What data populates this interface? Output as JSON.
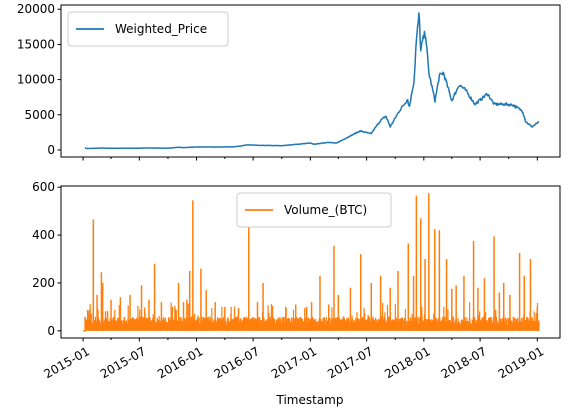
{
  "chart_data": [
    {
      "type": "line",
      "title": "",
      "xlabel": "",
      "ylabel": "",
      "xlim": [
        "2014-10-22",
        "2019-03-15"
      ],
      "ylim": [
        -1000,
        20600
      ],
      "yticks": [
        0,
        5000,
        10000,
        15000,
        20000
      ],
      "x_tick_labels_shown": false,
      "grid": false,
      "legend": "top-left",
      "series": [
        {
          "name": "Weighted_Price",
          "color": "#1f77b4",
          "x": [
            "2015-01-07",
            "2015-01-14",
            "2015-02-01",
            "2015-03-01",
            "2015-04-01",
            "2015-06-01",
            "2015-08-01",
            "2015-10-01",
            "2015-11-05",
            "2015-11-20",
            "2016-01-01",
            "2016-03-01",
            "2016-05-01",
            "2016-06-15",
            "2016-07-15",
            "2016-10-01",
            "2017-01-01",
            "2017-01-12",
            "2017-03-01",
            "2017-03-25",
            "2017-05-01",
            "2017-06-10",
            "2017-07-15",
            "2017-08-15",
            "2017-09-01",
            "2017-09-15",
            "2017-10-15",
            "2017-11-10",
            "2017-11-15",
            "2017-12-01",
            "2017-12-07",
            "2017-12-17",
            "2017-12-22",
            "2017-12-28",
            "2018-01-06",
            "2018-01-17",
            "2018-02-06",
            "2018-02-20",
            "2018-03-05",
            "2018-04-01",
            "2018-04-25",
            "2018-05-15",
            "2018-06-15",
            "2018-07-25",
            "2018-08-15",
            "2018-09-15",
            "2018-10-15",
            "2018-11-15",
            "2018-11-25",
            "2018-12-15",
            "2019-01-07"
          ],
          "y": [
            300,
            200,
            230,
            270,
            240,
            240,
            280,
            250,
            380,
            330,
            430,
            420,
            450,
            720,
            660,
            610,
            980,
            800,
            1100,
            950,
            1800,
            2700,
            2300,
            4200,
            4800,
            3300,
            5600,
            7200,
            6000,
            10000,
            15000,
            19500,
            14000,
            15500,
            16800,
            11000,
            7000,
            10500,
            11000,
            7000,
            9300,
            8500,
            6500,
            8000,
            6500,
            6500,
            6400,
            5500,
            4000,
            3300,
            4000
          ]
        }
      ]
    },
    {
      "type": "line",
      "title": "",
      "xlabel": "Timestamp",
      "ylabel": "",
      "xlim": [
        "2014-10-22",
        "2019-03-15"
      ],
      "ylim": [
        -30,
        605
      ],
      "yticks": [
        0,
        200,
        400,
        600
      ],
      "xticks": [
        "2015-01-01",
        "2015-07-01",
        "2016-01-01",
        "2016-07-01",
        "2017-01-01",
        "2017-07-01",
        "2018-01-01",
        "2018-07-01",
        "2019-01-01"
      ],
      "xtick_labels": [
        "2015-01",
        "2015-07",
        "2016-01",
        "2016-07",
        "2017-01",
        "2017-07",
        "2018-01",
        "2018-07",
        "2019-01"
      ],
      "grid": false,
      "legend": "top-center",
      "series": [
        {
          "name": "Volume_(BTC)",
          "color": "#ff7f0e",
          "baseline_max": 60,
          "spikes": {
            "x": [
              "2015-01-22",
              "2015-02-03",
              "2015-02-15",
              "2015-03-01",
              "2015-03-05",
              "2015-04-01",
              "2015-05-01",
              "2015-06-01",
              "2015-07-08",
              "2015-08-01",
              "2015-08-19",
              "2015-09-10",
              "2015-10-15",
              "2015-11-04",
              "2015-11-20",
              "2015-12-01",
              "2015-12-10",
              "2015-12-20",
              "2016-01-15",
              "2016-02-01",
              "2016-03-01",
              "2016-04-01",
              "2016-05-15",
              "2016-06-17",
              "2016-07-15",
              "2016-08-02",
              "2016-09-01",
              "2016-10-15",
              "2016-11-15",
              "2016-12-20",
              "2017-01-05",
              "2017-02-01",
              "2017-03-01",
              "2017-03-18",
              "2017-04-01",
              "2017-05-10",
              "2017-06-12",
              "2017-07-16",
              "2017-08-15",
              "2017-09-15",
              "2017-10-10",
              "2017-11-12",
              "2017-11-29",
              "2017-12-08",
              "2017-12-22",
              "2018-01-05",
              "2018-01-17",
              "2018-02-05",
              "2018-02-20",
              "2018-03-15",
              "2018-04-01",
              "2018-04-15",
              "2018-05-10",
              "2018-06-10",
              "2018-06-24",
              "2018-07-15",
              "2018-08-15",
              "2018-09-01",
              "2018-09-15",
              "2018-10-05",
              "2018-11-05",
              "2018-11-20",
              "2018-12-10",
              "2019-01-01"
            ],
            "y": [
              90,
              465,
              150,
              245,
              200,
              130,
              140,
              150,
              190,
              130,
              280,
              120,
              100,
              200,
              120,
              130,
              250,
              545,
              260,
              170,
              120,
              100,
              95,
              435,
              120,
              200,
              100,
              95,
              110,
              100,
              120,
              230,
              110,
              355,
              150,
              180,
              320,
              200,
              230,
              180,
              250,
              365,
              230,
              565,
              470,
              300,
              575,
              425,
              420,
              300,
              175,
              190,
              230,
              375,
              180,
              220,
              395,
              160,
              200,
              150,
              325,
              230,
              300,
              100
            ]
          }
        }
      ]
    }
  ]
}
